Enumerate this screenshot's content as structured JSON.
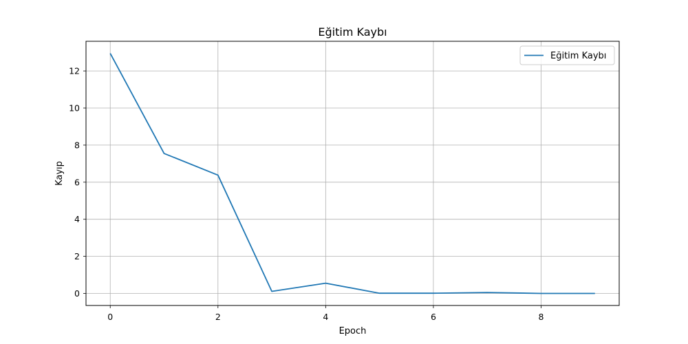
{
  "chart_data": {
    "type": "line",
    "title": "Eğitim Kaybı",
    "xlabel": "Epoch",
    "ylabel": "Kayıp",
    "x": [
      0,
      1,
      2,
      3,
      4,
      5,
      6,
      7,
      8,
      9
    ],
    "series": [
      {
        "name": "Eğitim Kaybı",
        "color": "#1f77b4",
        "values": [
          12.95,
          7.55,
          6.38,
          0.11,
          0.55,
          0.01,
          0.01,
          0.05,
          0.0,
          0.0
        ]
      }
    ],
    "xlim": [
      -0.45,
      9.45
    ],
    "ylim": [
      -0.65,
      13.6
    ],
    "xticks": [
      0,
      2,
      4,
      6,
      8
    ],
    "yticks": [
      0,
      2,
      4,
      6,
      8,
      10,
      12
    ],
    "grid": true,
    "legend_position": "top-right"
  }
}
